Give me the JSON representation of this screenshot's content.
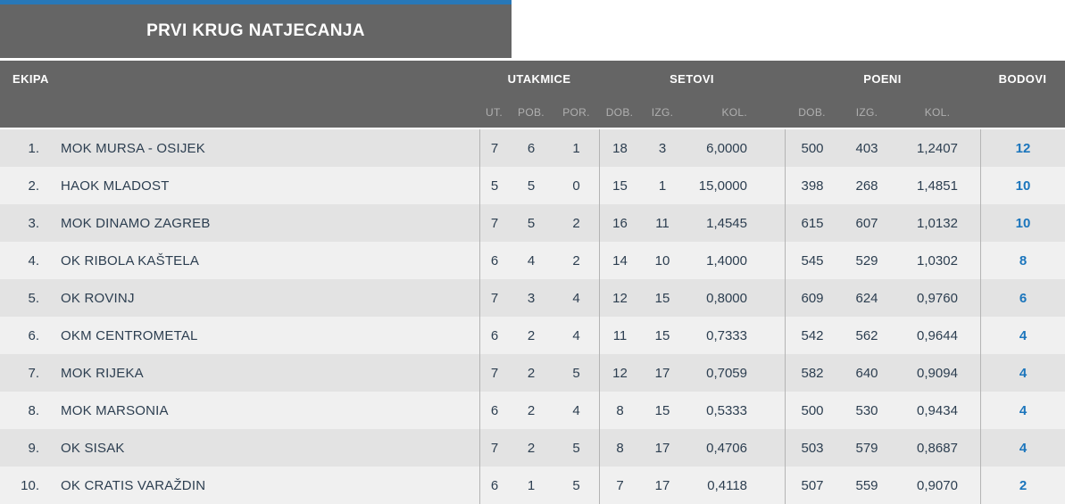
{
  "banner": {
    "title": "PRVI KRUG NATJECANJA"
  },
  "table": {
    "groups": [
      {
        "label": "EKIPA"
      },
      {
        "label": "UTAKMICE"
      },
      {
        "label": "SETOVI"
      },
      {
        "label": "POENI"
      },
      {
        "label": "BODOVI"
      }
    ],
    "sub_headers": [
      "UT.",
      "POB.",
      "POR.",
      "DOB.",
      "IZG.",
      "KOL.",
      "DOB.",
      "IZG.",
      "KOL."
    ],
    "rows": [
      {
        "rank": "1.",
        "team": "MOK MURSA - OSIJEK",
        "ut": "7",
        "pob": "6",
        "por": "1",
        "set_dob": "18",
        "set_izg": "3",
        "set_kol": "6,0000",
        "poen_dob": "500",
        "poen_izg": "403",
        "poen_kol": "1,2407",
        "bodovi": "12"
      },
      {
        "rank": "2.",
        "team": "HAOK MLADOST",
        "ut": "5",
        "pob": "5",
        "por": "0",
        "set_dob": "15",
        "set_izg": "1",
        "set_kol": "15,0000",
        "poen_dob": "398",
        "poen_izg": "268",
        "poen_kol": "1,4851",
        "bodovi": "10"
      },
      {
        "rank": "3.",
        "team": "MOK DINAMO ZAGREB",
        "ut": "7",
        "pob": "5",
        "por": "2",
        "set_dob": "16",
        "set_izg": "11",
        "set_kol": "1,4545",
        "poen_dob": "615",
        "poen_izg": "607",
        "poen_kol": "1,0132",
        "bodovi": "10"
      },
      {
        "rank": "4.",
        "team": "OK RIBOLA KAŠTELA",
        "ut": "6",
        "pob": "4",
        "por": "2",
        "set_dob": "14",
        "set_izg": "10",
        "set_kol": "1,4000",
        "poen_dob": "545",
        "poen_izg": "529",
        "poen_kol": "1,0302",
        "bodovi": "8"
      },
      {
        "rank": "5.",
        "team": "OK ROVINJ",
        "ut": "7",
        "pob": "3",
        "por": "4",
        "set_dob": "12",
        "set_izg": "15",
        "set_kol": "0,8000",
        "poen_dob": "609",
        "poen_izg": "624",
        "poen_kol": "0,9760",
        "bodovi": "6"
      },
      {
        "rank": "6.",
        "team": "OKM CENTROMETAL",
        "ut": "6",
        "pob": "2",
        "por": "4",
        "set_dob": "11",
        "set_izg": "15",
        "set_kol": "0,7333",
        "poen_dob": "542",
        "poen_izg": "562",
        "poen_kol": "0,9644",
        "bodovi": "4"
      },
      {
        "rank": "7.",
        "team": "MOK RIJEKA",
        "ut": "7",
        "pob": "2",
        "por": "5",
        "set_dob": "12",
        "set_izg": "17",
        "set_kol": "0,7059",
        "poen_dob": "582",
        "poen_izg": "640",
        "poen_kol": "0,9094",
        "bodovi": "4"
      },
      {
        "rank": "8.",
        "team": "MOK MARSONIA",
        "ut": "6",
        "pob": "2",
        "por": "4",
        "set_dob": "8",
        "set_izg": "15",
        "set_kol": "0,5333",
        "poen_dob": "500",
        "poen_izg": "530",
        "poen_kol": "0,9434",
        "bodovi": "4"
      },
      {
        "rank": "9.",
        "team": "OK SISAK",
        "ut": "7",
        "pob": "2",
        "por": "5",
        "set_dob": "8",
        "set_izg": "17",
        "set_kol": "0,4706",
        "poen_dob": "503",
        "poen_izg": "579",
        "poen_kol": "0,8687",
        "bodovi": "4"
      },
      {
        "rank": "10.",
        "team": "OK CRATIS VARAŽDIN",
        "ut": "6",
        "pob": "1",
        "por": "5",
        "set_dob": "7",
        "set_izg": "17",
        "set_kol": "0,4118",
        "poen_dob": "507",
        "poen_izg": "559",
        "poen_kol": "0,9070",
        "bodovi": "2"
      }
    ]
  },
  "colors": {
    "accent_blue": "#2878b8",
    "header_gray": "#656565",
    "points_blue": "#1b75bc",
    "row_odd": "#e3e3e3",
    "row_even": "#f0f0f0",
    "text_dark": "#2c3e50",
    "separator_gray": "#b4b4b4"
  }
}
